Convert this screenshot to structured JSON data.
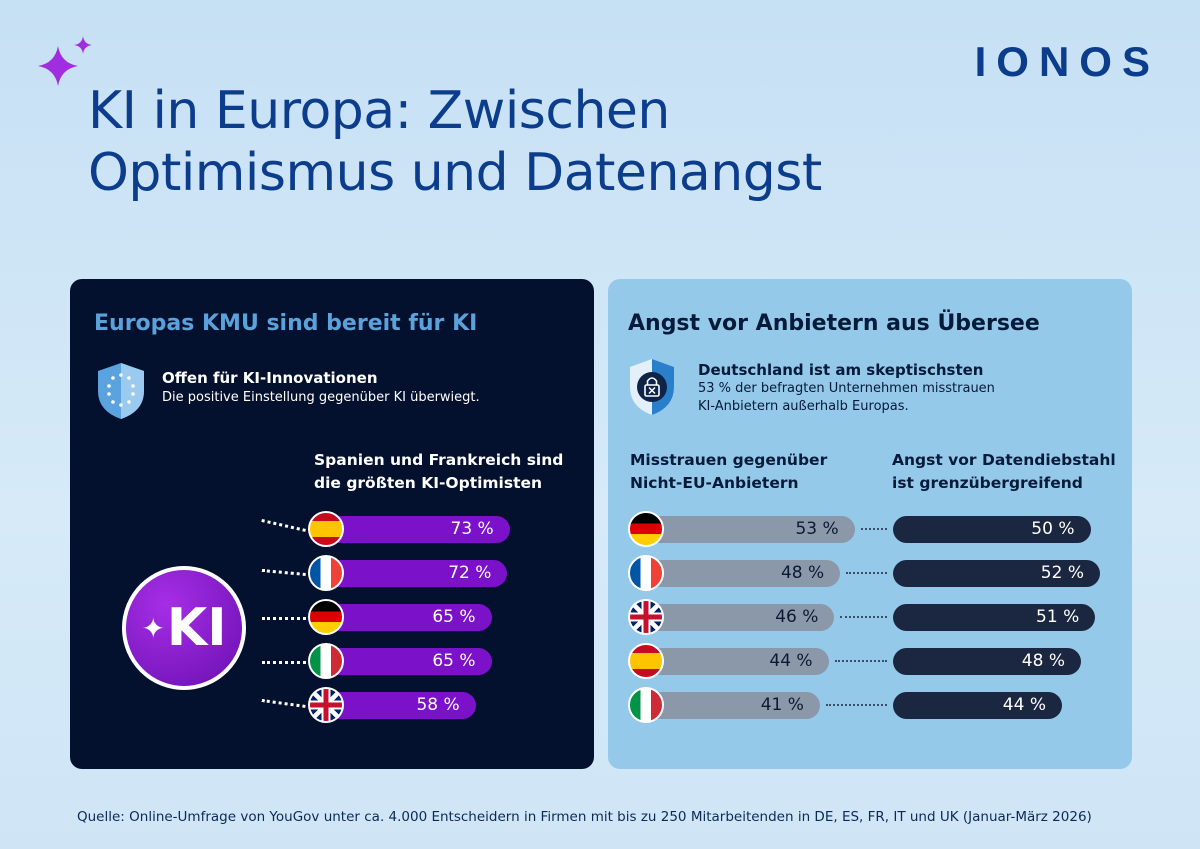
{
  "brand": {
    "logo": "IONOS",
    "accent": "#0b3d8c"
  },
  "title": "KI in Europa: Zwischen\nOptimismus und Datenangst",
  "left_panel": {
    "heading": "Europas KMU sind bereit für KI",
    "icon": "eu-shield-icon",
    "subtitle": "Offen für KI-Innovationen",
    "description": "Die positive Einstellung gegenüber KI überwiegt.",
    "badge": "KI",
    "chart_heading": "Spanien und Frankreich sind\ndie größten KI-Optimisten"
  },
  "right_panel": {
    "heading": "Angst vor Anbietern aus Übersee",
    "icon": "lock-shield-icon",
    "subtitle": "Deutschland ist am skeptischsten",
    "description": "53 % der befragten Unternehmen misstrauen\nKI-Anbietern außerhalb Europas.",
    "col1_heading": "Misstrauen gegenüber\nNicht-EU-Anbietern",
    "col2_heading": "Angst vor Datendiebstahl\nist grenzübergreifend"
  },
  "source": "Quelle: Online-Umfrage von YouGov unter ca. 4.000 Entscheidern in Firmen mit bis zu 250 Mitarbeitenden in DE, ES, FR, IT und UK (Januar-März 2026)",
  "chart_data": [
    {
      "type": "bar",
      "title": "Spanien und Frankreich sind die größten KI-Optimisten",
      "categories": [
        "ES",
        "FR",
        "DE",
        "IT",
        "UK"
      ],
      "values": [
        73,
        72,
        65,
        65,
        58
      ],
      "labels": [
        "73 %",
        "72 %",
        "65 %",
        "65 %",
        "58 %"
      ],
      "color": "#7b12c9"
    },
    {
      "type": "bar",
      "categories": [
        "DE",
        "FR",
        "UK",
        "ES",
        "IT"
      ],
      "series": [
        {
          "name": "Misstrauen gegenüber Nicht-EU-Anbietern",
          "values": [
            53,
            48,
            46,
            44,
            41
          ],
          "labels": [
            "53 %",
            "48 %",
            "46 %",
            "44 %",
            "41 %"
          ],
          "color": "#8b98a9"
        },
        {
          "name": "Angst vor Datendiebstahl ist grenzübergreifend",
          "values": [
            50,
            52,
            51,
            48,
            44
          ],
          "labels": [
            "50 %",
            "52 %",
            "51 %",
            "48 %",
            "44 %"
          ],
          "color": "#1b2740"
        }
      ]
    }
  ]
}
